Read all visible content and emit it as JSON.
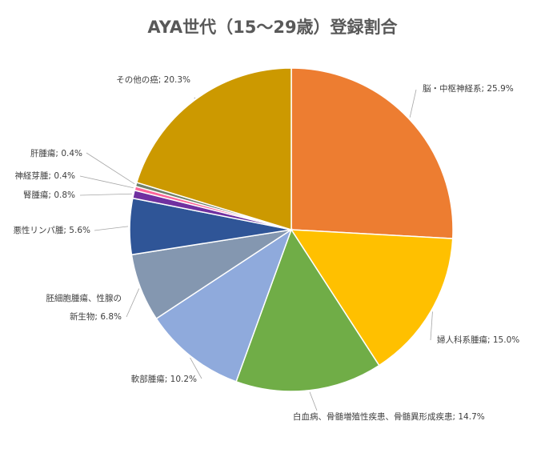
{
  "chart_data": {
    "type": "pie",
    "title": "AYA世代（15〜29歳）登録割合",
    "slices": [
      {
        "label": "脳・中枢神経系",
        "value": 25.9,
        "display": "脳・中枢神経系; 25.9%",
        "color": "#ED7D31"
      },
      {
        "label": "婦人科系腫瘍",
        "value": 15.0,
        "display": "婦人科系腫瘍; 15.0%",
        "color": "#FFC000"
      },
      {
        "label": "白血病、骨髄増殖性疾患、骨髄異形成疾患",
        "value": 14.7,
        "display": "白血病、骨髄増殖性疾患、骨髄異形成疾患; 14.7%",
        "color": "#70AD47"
      },
      {
        "label": "軟部腫瘍",
        "value": 10.2,
        "display": "軟部腫瘍; 10.2%",
        "color": "#8FAADC"
      },
      {
        "label": "胚細胞腫瘍、性腺の新生物",
        "value": 6.8,
        "display_lines": [
          "胚細胞腫瘍、性腺の",
          "新生物; 6.8%"
        ],
        "color": "#8497B0"
      },
      {
        "label": "悪性リンパ腫",
        "value": 5.6,
        "display": "悪性リンパ腫; 5.6%",
        "color": "#2F5597"
      },
      {
        "label": "腎腫瘍",
        "value": 0.8,
        "display": "腎腫瘍; 0.8%",
        "color": "#7030A0"
      },
      {
        "label": "神経芽腫",
        "value": 0.4,
        "display": "神経芽腫; 0.4%",
        "color": "#FF6699"
      },
      {
        "label": "肝腫瘍",
        "value": 0.4,
        "display": "肝腫瘍; 0.4%",
        "color": "#70806C"
      },
      {
        "label": "その他の癌",
        "value": 20.3,
        "display": "その他の癌; 20.3%",
        "color": "#CC9900"
      }
    ]
  }
}
